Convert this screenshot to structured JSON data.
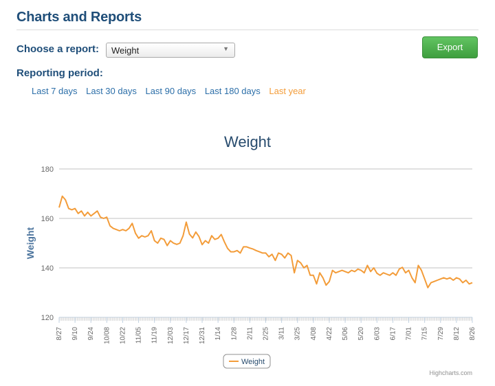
{
  "header": {
    "title": "Charts and Reports"
  },
  "report": {
    "label": "Choose a report:",
    "selected": "Weight",
    "arrow_icon": "triangle-down-icon"
  },
  "export": {
    "label": "Export"
  },
  "period": {
    "label": "Reporting period:",
    "options": [
      "Last 7 days",
      "Last 30 days",
      "Last 90 days",
      "Last 180 days",
      "Last year"
    ],
    "active": "Last year"
  },
  "chart_data": {
    "type": "line",
    "title": "Weight",
    "ylabel": "Weight",
    "xlabel": "",
    "ylim": [
      120,
      180
    ],
    "yticks": [
      120,
      140,
      160,
      180
    ],
    "grid": true,
    "legend": "bottom-center",
    "line_color": "#f39c39",
    "credit": "Highcharts.com",
    "x_tick_labels": [
      "8/27",
      "9/10",
      "9/24",
      "10/08",
      "10/22",
      "11/05",
      "11/19",
      "12/03",
      "12/17",
      "12/31",
      "1/14",
      "1/28",
      "2/11",
      "2/25",
      "3/11",
      "3/25",
      "4/08",
      "4/22",
      "5/06",
      "5/20",
      "6/03",
      "6/17",
      "7/01",
      "7/15",
      "7/29",
      "8/12",
      "8/26"
    ],
    "series": [
      {
        "name": "Weight",
        "values": [
          164.4,
          169,
          167.5,
          164,
          163.5,
          164,
          162,
          163,
          161,
          162.5,
          161,
          162,
          163,
          160.5,
          160,
          160.5,
          157,
          156,
          155.5,
          155,
          155.5,
          155,
          156,
          158,
          154,
          152,
          153,
          152.5,
          153,
          155,
          151,
          150,
          152,
          151.5,
          149,
          151,
          150,
          149.5,
          150,
          153,
          158.5,
          153.7,
          152.1,
          154.5,
          152.7,
          149.4,
          151,
          150,
          153,
          151.5,
          152,
          153.5,
          150.5,
          147.9,
          146.5,
          146.5,
          147,
          146,
          148.5,
          148.5,
          148,
          147.6,
          147,
          146.5,
          146,
          146,
          144.5,
          145.5,
          143,
          146,
          145.5,
          144,
          146,
          145,
          138,
          143,
          142,
          140,
          141,
          137,
          137,
          133.5,
          138,
          136,
          133,
          134.5,
          139,
          138,
          138.5,
          139,
          138.5,
          138,
          139,
          138.5,
          139.5,
          139,
          138,
          141,
          138.5,
          140,
          137.8,
          137,
          138,
          137.5,
          137,
          138,
          137,
          139.5,
          140.2,
          138,
          139,
          136,
          134,
          141,
          139,
          135.5,
          132,
          134,
          134.5,
          135,
          135.5,
          136,
          135.5,
          136,
          135,
          136,
          135.5,
          134,
          135,
          133.5,
          134
        ]
      }
    ]
  }
}
